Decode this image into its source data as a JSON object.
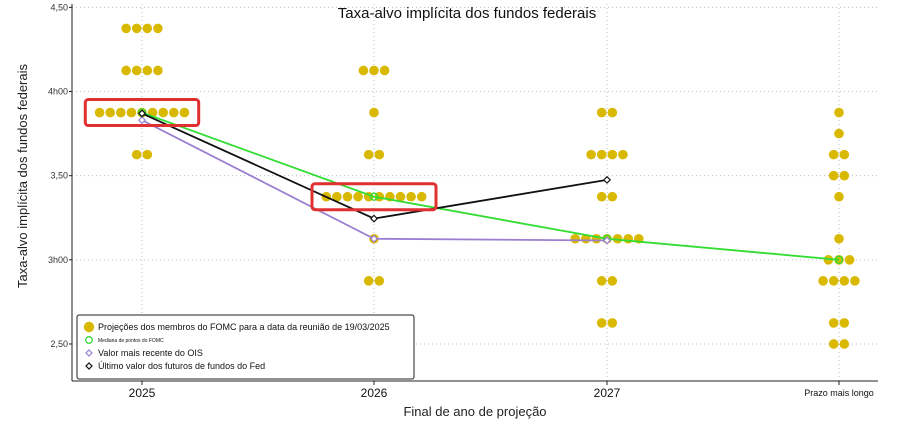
{
  "chart_data": {
    "type": "scatter",
    "title": "Taxa-alvo implícita dos fundos federais",
    "xlabel": "Final de ano de projeção",
    "ylabel": "Taxa-alvo implícita dos fundos federais",
    "categories": [
      "2025",
      "2026",
      "2027",
      "Prazo mais longo"
    ],
    "y_ticks": [
      {
        "value": 4.5,
        "label": "4,50"
      },
      {
        "value": 4.0,
        "label": "4h00"
      },
      {
        "value": 3.5,
        "label": "3,50"
      },
      {
        "value": 3.0,
        "label": "3h00"
      },
      {
        "value": 2.5,
        "label": "2,50"
      }
    ],
    "ylim": [
      2.28,
      4.52
    ],
    "grid": true,
    "legend_position": "bottom-left",
    "legend": [
      {
        "label": "Projeções dos membros do FOMC para a data da reunião de 19/03/2025",
        "marker": "dot",
        "color": "#d9b800"
      },
      {
        "label": "Mediana de pontos do FOMC",
        "marker": "circle",
        "color": "#33dd33"
      },
      {
        "label": "Valor mais recente do OIS",
        "marker": "diamond",
        "color": "#9a7fd1"
      },
      {
        "label": "Último valor dos futuros de fundos do Fed",
        "marker": "diamond",
        "color": "#111111"
      }
    ],
    "fomc_dots": [
      {
        "category": "2025",
        "counts": [
          {
            "rate": 4.375,
            "n": 4
          },
          {
            "rate": 4.125,
            "n": 4
          },
          {
            "rate": 3.875,
            "n": 9
          },
          {
            "rate": 3.625,
            "n": 2
          }
        ]
      },
      {
        "category": "2026",
        "counts": [
          {
            "rate": 4.125,
            "n": 3
          },
          {
            "rate": 3.875,
            "n": 1
          },
          {
            "rate": 3.625,
            "n": 2
          },
          {
            "rate": 3.375,
            "n": 10
          },
          {
            "rate": 3.125,
            "n": 1
          },
          {
            "rate": 2.875,
            "n": 2
          }
        ]
      },
      {
        "category": "2027",
        "counts": [
          {
            "rate": 3.875,
            "n": 2
          },
          {
            "rate": 3.625,
            "n": 4
          },
          {
            "rate": 3.375,
            "n": 2
          },
          {
            "rate": 3.125,
            "n": 7
          },
          {
            "rate": 2.875,
            "n": 2
          },
          {
            "rate": 2.625,
            "n": 2
          }
        ]
      },
      {
        "category": "Prazo mais longo",
        "counts": [
          {
            "rate": 3.875,
            "n": 1
          },
          {
            "rate": 3.75,
            "n": 1
          },
          {
            "rate": 3.625,
            "n": 2
          },
          {
            "rate": 3.5,
            "n": 2
          },
          {
            "rate": 3.375,
            "n": 1
          },
          {
            "rate": 3.125,
            "n": 1
          },
          {
            "rate": 3.0,
            "n": 3
          },
          {
            "rate": 2.875,
            "n": 4
          },
          {
            "rate": 2.625,
            "n": 2
          },
          {
            "rate": 2.5,
            "n": 2
          }
        ]
      }
    ],
    "series": [
      {
        "name": "Mediana de pontos do FOMC",
        "color": "#33dd33",
        "x": [
          "2025",
          "2026",
          "2027",
          "Prazo mais longo"
        ],
        "values": [
          3.875,
          3.375,
          3.125,
          3.0
        ]
      },
      {
        "name": "Valor mais recente do OIS",
        "color": "#9a7fd1",
        "x": [
          "2025",
          "2026",
          "2027"
        ],
        "values": [
          3.83,
          3.125,
          3.115
        ]
      },
      {
        "name": "Último valor dos futuros de fundos do Fed",
        "color": "#111111",
        "x": [
          "2025",
          "2026",
          "2027"
        ],
        "values": [
          3.87,
          3.245,
          3.475
        ]
      }
    ],
    "annotations": [
      {
        "type": "highlight-box",
        "category": "2025",
        "rate": 3.875,
        "color": "#e03030"
      },
      {
        "type": "highlight-box",
        "category": "2026",
        "rate": 3.375,
        "color": "#e03030"
      }
    ]
  }
}
